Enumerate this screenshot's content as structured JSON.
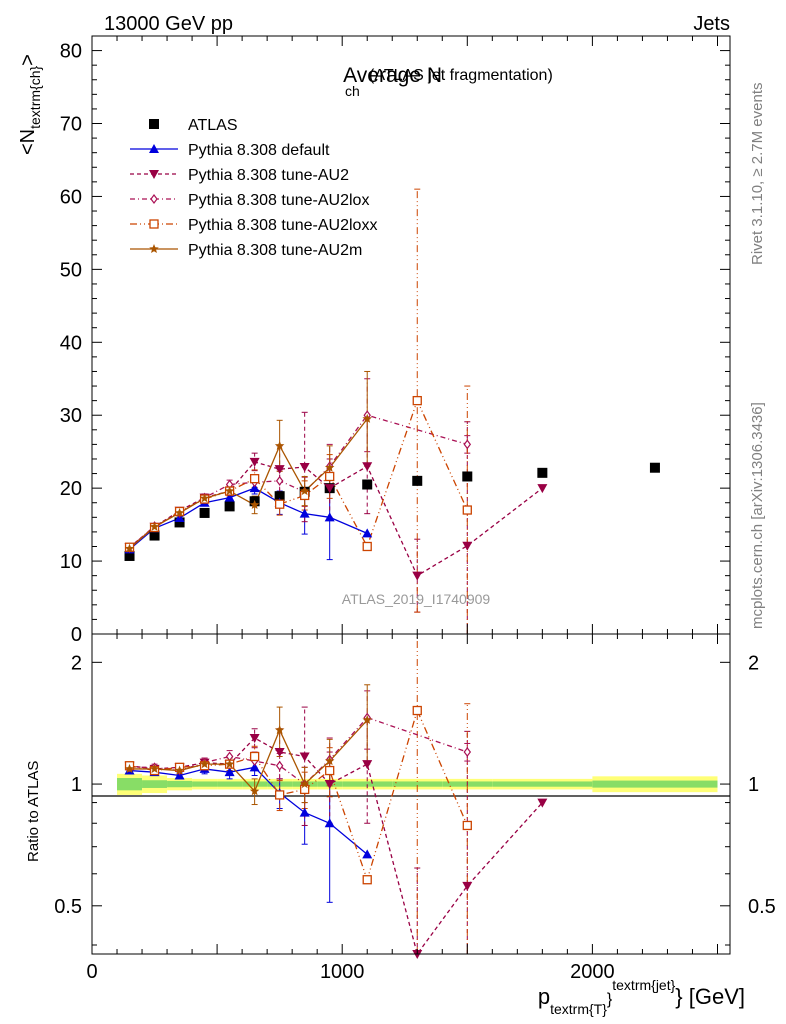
{
  "header": {
    "left": "13000 GeV pp",
    "right": "Jets"
  },
  "side": {
    "rivet": "Rivet 3.1.10, ≥ 2.7M events",
    "mcplots": "mcplots.cern.ch [arXiv:1306.3436]"
  },
  "chart_data": [
    {
      "type": "scatter",
      "title_main": "Average N",
      "title_sub": "ch",
      "title_paren": "(ATLAS jet fragmentation)",
      "ylabel_main": "<N",
      "ylabel_sub": "textrm{ch}",
      "ylabel_close": ">",
      "analysis_tag": "ATLAS_2019_I1740909",
      "xlim": [
        0,
        2550
      ],
      "ylim": [
        0,
        82
      ],
      "yticks": [
        0,
        10,
        20,
        30,
        40,
        50,
        60,
        70,
        80
      ],
      "ytick_labels": [
        "0",
        "10",
        "20",
        "30",
        "40",
        "50",
        "60",
        "70",
        "80"
      ],
      "series": [
        {
          "name": "ATLAS",
          "color": "#000000",
          "marker": "square-filled",
          "line": "none",
          "x": [
            150,
            250,
            350,
            450,
            550,
            650,
            750,
            850,
            950,
            1100,
            1300,
            1500,
            1800,
            2250
          ],
          "y": [
            10.7,
            13.5,
            15.3,
            16.6,
            17.5,
            18.2,
            18.9,
            19.5,
            20.0,
            20.5,
            21.0,
            21.6,
            22.1,
            22.8
          ],
          "err": [
            0,
            0,
            0,
            0,
            0,
            0,
            0,
            0,
            0,
            0,
            0,
            0,
            0,
            0
          ]
        },
        {
          "name": "Pythia 8.308 default",
          "color": "#0000dd",
          "marker": "triangle-up",
          "line": "solid",
          "x": [
            150,
            250,
            350,
            450,
            550,
            650,
            750,
            850,
            950,
            1100
          ],
          "y": [
            11.6,
            14.5,
            15.9,
            18.0,
            18.7,
            20.0,
            18.0,
            16.5,
            16.0,
            13.8
          ],
          "err": [
            0.3,
            0.3,
            0.3,
            0.4,
            0.6,
            0.8,
            1.6,
            2.8,
            5.8,
            0
          ]
        },
        {
          "name": "Pythia 8.308 tune-AU2",
          "color": "#990044",
          "marker": "triangle-down",
          "line": "dashed",
          "x": [
            150,
            250,
            350,
            450,
            550,
            650,
            750,
            850,
            950,
            1100,
            1300,
            1500,
            1800
          ],
          "y": [
            11.9,
            14.7,
            16.9,
            18.7,
            19.6,
            23.6,
            22.6,
            22.9,
            20.0,
            23.0,
            8.0,
            12.1,
            20.0
          ],
          "err": [
            0.3,
            0.3,
            0.4,
            0.5,
            0.6,
            1.2,
            3.2,
            7.5,
            4.0,
            6.5,
            5.0,
            17.0,
            0
          ]
        },
        {
          "name": "Pythia 8.308 tune-AU2lox",
          "color": "#aa1155",
          "marker": "diamond-open",
          "line": "dashdot",
          "x": [
            150,
            250,
            350,
            450,
            550,
            650,
            750,
            850,
            950,
            1100,
            1500
          ],
          "y": [
            11.8,
            14.8,
            16.6,
            18.7,
            20.5,
            20.8,
            21.0,
            19.5,
            23.0,
            30.0,
            26.0
          ],
          "err": [
            0.3,
            0.3,
            0.4,
            0.5,
            0.6,
            1.0,
            1.5,
            2.0,
            3.0,
            5.0,
            1.2
          ]
        },
        {
          "name": "Pythia 8.308 tune-AU2loxx",
          "color": "#cc4400",
          "marker": "square-open",
          "line": "dashdotdot",
          "x": [
            150,
            250,
            350,
            450,
            550,
            650,
            750,
            850,
            950,
            1100,
            1300,
            1500
          ],
          "y": [
            11.9,
            14.6,
            16.8,
            18.5,
            19.6,
            21.3,
            17.8,
            19.0,
            21.6,
            12.0,
            32.0,
            17.0
          ],
          "err": [
            0.3,
            0.3,
            0.4,
            0.5,
            0.8,
            1.2,
            1.5,
            2.0,
            3.0,
            0,
            29.0,
            17.0
          ]
        },
        {
          "name": "Pythia 8.308 tune-AU2m",
          "color": "#aa5500",
          "marker": "star",
          "line": "solid",
          "x": [
            150,
            250,
            350,
            450,
            550,
            650,
            750,
            850,
            950,
            1100
          ],
          "y": [
            11.7,
            14.7,
            16.6,
            18.6,
            19.6,
            17.7,
            25.8,
            19.6,
            22.8,
            29.5
          ],
          "err": [
            0.3,
            0.3,
            0.4,
            0.5,
            0.6,
            1.2,
            3.5,
            2.0,
            3.0,
            6.5
          ]
        }
      ]
    },
    {
      "type": "scatter",
      "ylabel": "Ratio to ATLAS",
      "xlabel_main": "p",
      "xlabel_sub": "textrm{T}",
      "xlabel_brace": "}",
      "xlabel_sup": "textrm{jet}",
      "xlabel_brace2": "}",
      "xlabel_unit": " [GeV]",
      "xlim": [
        0,
        2550
      ],
      "ylim": [
        0.38,
        2.35
      ],
      "xticks": [
        0,
        1000,
        2000
      ],
      "xtick_labels": [
        "0",
        "1000",
        "2000"
      ],
      "yticks": [
        0.5,
        1,
        2
      ],
      "ytick_labels": [
        "0.5",
        "1",
        "2"
      ],
      "band": {
        "x_edges": [
          100,
          200,
          300,
          400,
          500,
          600,
          700,
          800,
          900,
          1000,
          1200,
          1400,
          1600,
          2000,
          2500
        ],
        "inner": [
          0.035,
          0.022,
          0.018,
          0.015,
          0.015,
          0.015,
          0.015,
          0.015,
          0.015,
          0.015,
          0.015,
          0.015,
          0.015,
          0.02
        ],
        "outer": [
          0.06,
          0.05,
          0.035,
          0.03,
          0.03,
          0.03,
          0.03,
          0.03,
          0.03,
          0.03,
          0.03,
          0.03,
          0.03,
          0.045
        ],
        "inner_color": "#88dd66",
        "outer_color": "#ffff77"
      },
      "series": [
        {
          "name": "Pythia 8.308 default",
          "color": "#0000dd",
          "x": [
            150,
            250,
            350,
            450,
            550,
            650,
            750,
            850,
            950,
            1100
          ],
          "y": [
            1.08,
            1.07,
            1.05,
            1.09,
            1.07,
            1.1,
            0.95,
            0.85,
            0.8,
            0.67
          ],
          "err": [
            0.02,
            0.02,
            0.02,
            0.03,
            0.04,
            0.05,
            0.08,
            0.14,
            0.29,
            0
          ]
        },
        {
          "name": "Pythia 8.308 tune-AU2",
          "color": "#990044",
          "x": [
            150,
            250,
            350,
            450,
            550,
            650,
            750,
            850,
            950,
            1100,
            1300,
            1500,
            1800
          ],
          "y": [
            1.11,
            1.09,
            1.1,
            1.13,
            1.12,
            1.3,
            1.2,
            1.17,
            1.0,
            1.12,
            0.38,
            0.56,
            0.9
          ],
          "err": [
            0.02,
            0.02,
            0.02,
            0.03,
            0.04,
            0.07,
            0.17,
            0.38,
            0.2,
            0.32,
            0.24,
            0.79,
            0
          ]
        },
        {
          "name": "Pythia 8.308 tune-AU2lox",
          "color": "#aa1155",
          "x": [
            150,
            250,
            350,
            450,
            550,
            650,
            750,
            850,
            950,
            1100,
            1500
          ],
          "y": [
            1.1,
            1.1,
            1.08,
            1.13,
            1.17,
            1.14,
            1.11,
            1.0,
            1.15,
            1.46,
            1.2
          ],
          "err": [
            0.02,
            0.02,
            0.02,
            0.03,
            0.04,
            0.06,
            0.08,
            0.1,
            0.15,
            0.24,
            0.06
          ]
        },
        {
          "name": "Pythia 8.308 tune-AU2loxx",
          "color": "#cc4400",
          "x": [
            150,
            250,
            350,
            450,
            550,
            650,
            750,
            850,
            950,
            1100,
            1300,
            1500
          ],
          "y": [
            1.11,
            1.08,
            1.1,
            1.11,
            1.12,
            1.17,
            0.94,
            0.97,
            1.08,
            0.58,
            1.52,
            0.79
          ],
          "err": [
            0.02,
            0.02,
            0.02,
            0.03,
            0.05,
            0.07,
            0.08,
            0.1,
            0.15,
            0,
            1.4,
            0.79
          ]
        },
        {
          "name": "Pythia 8.308 tune-AU2m",
          "color": "#aa5500",
          "x": [
            150,
            250,
            350,
            450,
            550,
            650,
            750,
            850,
            950,
            1100
          ],
          "y": [
            1.09,
            1.09,
            1.08,
            1.12,
            1.12,
            0.96,
            1.36,
            1.0,
            1.14,
            1.44
          ],
          "err": [
            0.02,
            0.02,
            0.02,
            0.03,
            0.04,
            0.07,
            0.19,
            0.1,
            0.15,
            0.32
          ]
        }
      ]
    }
  ]
}
